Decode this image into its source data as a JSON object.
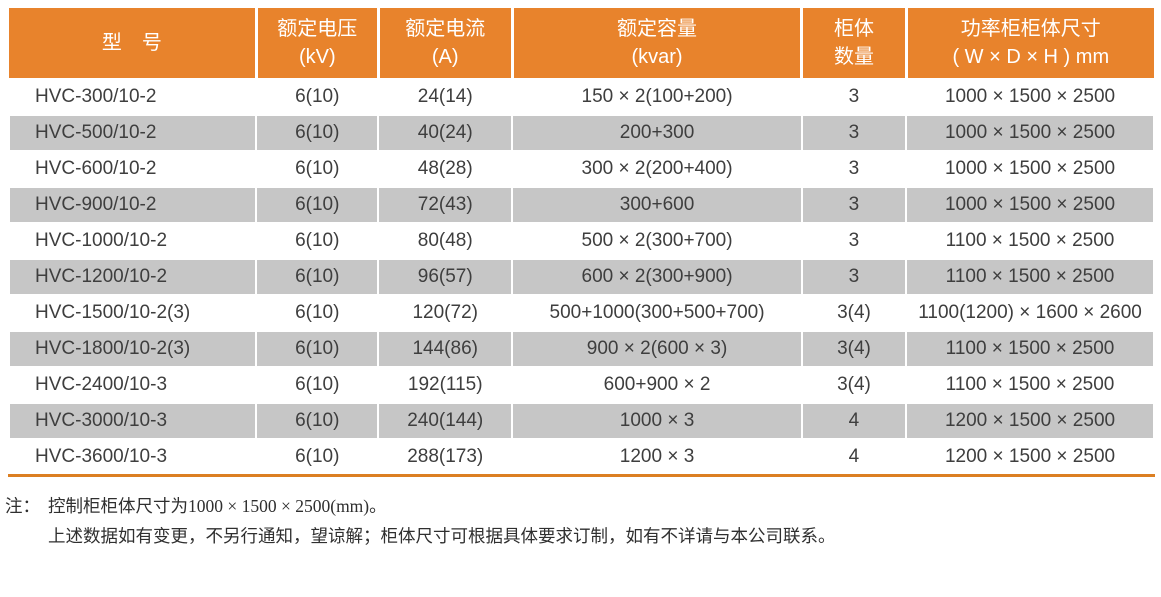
{
  "colors": {
    "header-bg": "#E8832C",
    "header-text": "#FFFFFF",
    "row-alt-bg": "#C6C6C6",
    "row-bg": "#FFFFFF",
    "cell-text": "#3E3E3E",
    "accent-line": "#DC7F22",
    "note-text": "#2F2F2F"
  },
  "table": {
    "columns": [
      {
        "line1": "型　号",
        "line2": ""
      },
      {
        "line1": "额定电压",
        "line2": "(kV)"
      },
      {
        "line1": "额定电流",
        "line2": "(A)"
      },
      {
        "line1": "额定容量",
        "line2": "(kvar)"
      },
      {
        "line1": "柜体",
        "line2": "数量"
      },
      {
        "line1": "功率柜柜体尺寸",
        "line2": "( W × D × H ) mm"
      }
    ],
    "rows": [
      {
        "model": "HVC-300/10-2",
        "voltage": "6(10)",
        "current": "24(14)",
        "capacity": "150 × 2(100+200)",
        "cabinets": "3",
        "dimensions": "1000 × 1500 × 2500"
      },
      {
        "model": "HVC-500/10-2",
        "voltage": "6(10)",
        "current": "40(24)",
        "capacity": "200+300",
        "cabinets": "3",
        "dimensions": "1000 × 1500 × 2500"
      },
      {
        "model": "HVC-600/10-2",
        "voltage": "6(10)",
        "current": "48(28)",
        "capacity": "300 × 2(200+400)",
        "cabinets": "3",
        "dimensions": "1000 × 1500 × 2500"
      },
      {
        "model": "HVC-900/10-2",
        "voltage": "6(10)",
        "current": "72(43)",
        "capacity": "300+600",
        "cabinets": "3",
        "dimensions": "1000 × 1500 × 2500"
      },
      {
        "model": "HVC-1000/10-2",
        "voltage": "6(10)",
        "current": "80(48)",
        "capacity": "500 × 2(300+700)",
        "cabinets": "3",
        "dimensions": "1100 × 1500 × 2500"
      },
      {
        "model": "HVC-1200/10-2",
        "voltage": "6(10)",
        "current": "96(57)",
        "capacity": "600 × 2(300+900)",
        "cabinets": "3",
        "dimensions": "1100 × 1500 × 2500"
      },
      {
        "model": "HVC-1500/10-2(3)",
        "voltage": "6(10)",
        "current": "120(72)",
        "capacity": "500+1000(300+500+700)",
        "cabinets": "3(4)",
        "dimensions": "1100(1200) × 1600 × 2600"
      },
      {
        "model": "HVC-1800/10-2(3)",
        "voltage": "6(10)",
        "current": "144(86)",
        "capacity": "900 × 2(600 × 3)",
        "cabinets": "3(4)",
        "dimensions": "1100 × 1500 × 2500"
      },
      {
        "model": "HVC-2400/10-3",
        "voltage": "6(10)",
        "current": "192(115)",
        "capacity": "600+900 × 2",
        "cabinets": "3(4)",
        "dimensions": "1100 × 1500 × 2500"
      },
      {
        "model": "HVC-3000/10-3",
        "voltage": "6(10)",
        "current": "240(144)",
        "capacity": "1000 × 3",
        "cabinets": "4",
        "dimensions": "1200 × 1500 × 2500"
      },
      {
        "model": "HVC-3600/10-3",
        "voltage": "6(10)",
        "current": "288(173)",
        "capacity": "1200 × 3",
        "cabinets": "4",
        "dimensions": "1200 × 1500 × 2500"
      }
    ]
  },
  "notes": {
    "prefix": "注：",
    "line1": "控制柜柜体尺寸为1000 × 1500 × 2500(mm)。",
    "line2": "上述数据如有变更，不另行通知，望谅解；柜体尺寸可根据具体要求订制，如有不详请与本公司联系。"
  }
}
